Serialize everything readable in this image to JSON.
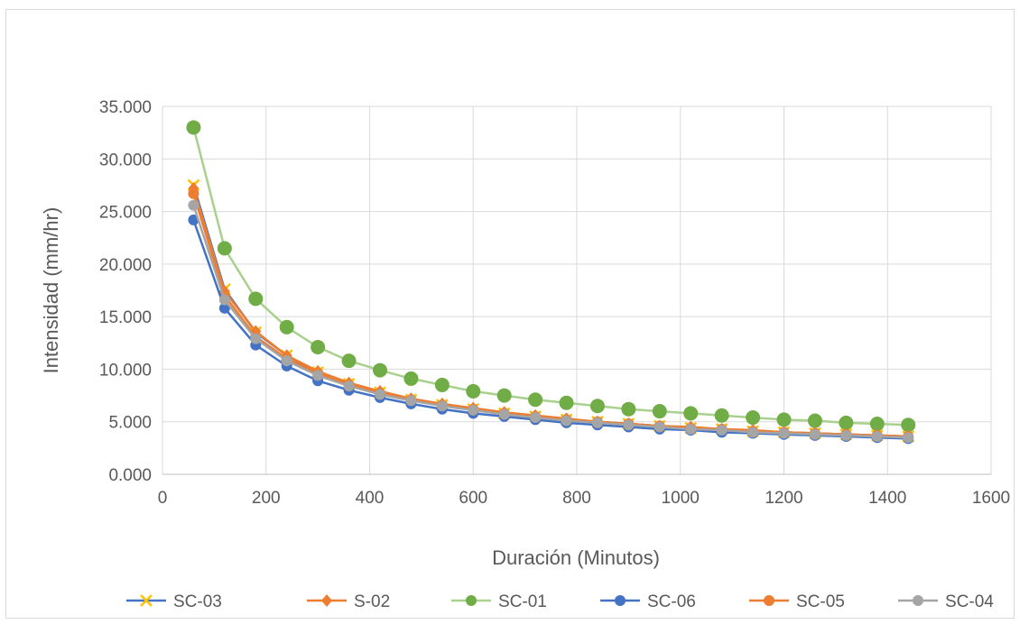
{
  "chart_data": {
    "type": "line",
    "title": "",
    "xlabel": "Duración (Minutos)",
    "ylabel": "Intensidad (mm/hr)",
    "xlim": [
      0,
      1600
    ],
    "ylim": [
      0,
      35
    ],
    "x_ticks": [
      0,
      200,
      400,
      600,
      800,
      1000,
      1200,
      1400,
      1600
    ],
    "x_tick_labels": [
      "0",
      "200",
      "400",
      "600",
      "800",
      "1000",
      "1200",
      "1400",
      "1600"
    ],
    "y_ticks": [
      0,
      5,
      10,
      15,
      20,
      25,
      30,
      35
    ],
    "y_tick_labels": [
      "0.000",
      "5.000",
      "10.000",
      "15.000",
      "20.000",
      "25.000",
      "30.000",
      "35.000"
    ],
    "grid": true,
    "legend_position": "bottom",
    "x": [
      60,
      120,
      180,
      240,
      300,
      360,
      420,
      480,
      540,
      600,
      660,
      720,
      780,
      840,
      900,
      960,
      1020,
      1080,
      1140,
      1200,
      1260,
      1320,
      1380,
      1440
    ],
    "series": [
      {
        "name": "SC-03",
        "color": "#4472c4",
        "marker": "x-marker-icon",
        "values": [
          27.5,
          17.6,
          13.5,
          11.3,
          9.7,
          8.6,
          7.8,
          7.1,
          6.6,
          6.2,
          5.8,
          5.5,
          5.2,
          5.0,
          4.8,
          4.6,
          4.4,
          4.3,
          4.1,
          4.0,
          3.9,
          3.8,
          3.7,
          3.6
        ]
      },
      {
        "name": "S-02",
        "color": "#ed7d31",
        "marker": "diamond-marker-icon",
        "values": [
          27.2,
          17.4,
          13.6,
          11.3,
          9.8,
          8.7,
          7.9,
          7.2,
          6.7,
          6.3,
          5.9,
          5.6,
          5.3,
          5.0,
          4.8,
          4.6,
          4.5,
          4.3,
          4.2,
          4.0,
          3.9,
          3.8,
          3.7,
          3.6
        ]
      },
      {
        "name": "SC-01",
        "color": "#a9d18e",
        "marker": "circle-marker-icon",
        "marker_color": "#70ad47",
        "values": [
          33.0,
          21.5,
          16.7,
          14.0,
          12.1,
          10.8,
          9.9,
          9.1,
          8.5,
          7.9,
          7.5,
          7.1,
          6.8,
          6.5,
          6.2,
          6.0,
          5.8,
          5.6,
          5.4,
          5.2,
          5.1,
          4.9,
          4.8,
          4.7
        ]
      },
      {
        "name": "SC-06",
        "color": "#4472c4",
        "marker": "circle-marker-icon",
        "values": [
          24.2,
          15.8,
          12.3,
          10.3,
          8.9,
          8.0,
          7.3,
          6.7,
          6.2,
          5.8,
          5.5,
          5.2,
          4.9,
          4.7,
          4.5,
          4.3,
          4.2,
          4.0,
          3.9,
          3.8,
          3.7,
          3.6,
          3.5,
          3.4
        ]
      },
      {
        "name": "SC-05",
        "color": "#ed7d31",
        "marker": "circle-marker-icon",
        "values": [
          26.7,
          17.0,
          13.1,
          11.0,
          9.6,
          8.5,
          7.7,
          7.1,
          6.6,
          6.2,
          5.8,
          5.5,
          5.2,
          5.0,
          4.8,
          4.6,
          4.4,
          4.3,
          4.1,
          4.0,
          3.9,
          3.8,
          3.7,
          3.6
        ]
      },
      {
        "name": "SC-04",
        "color": "#a5a5a5",
        "marker": "circle-marker-icon",
        "values": [
          25.6,
          16.6,
          12.9,
          10.8,
          9.4,
          8.4,
          7.6,
          7.0,
          6.5,
          6.1,
          5.7,
          5.4,
          5.1,
          4.9,
          4.7,
          4.5,
          4.3,
          4.2,
          4.0,
          3.9,
          3.8,
          3.7,
          3.6,
          3.5
        ]
      }
    ]
  }
}
